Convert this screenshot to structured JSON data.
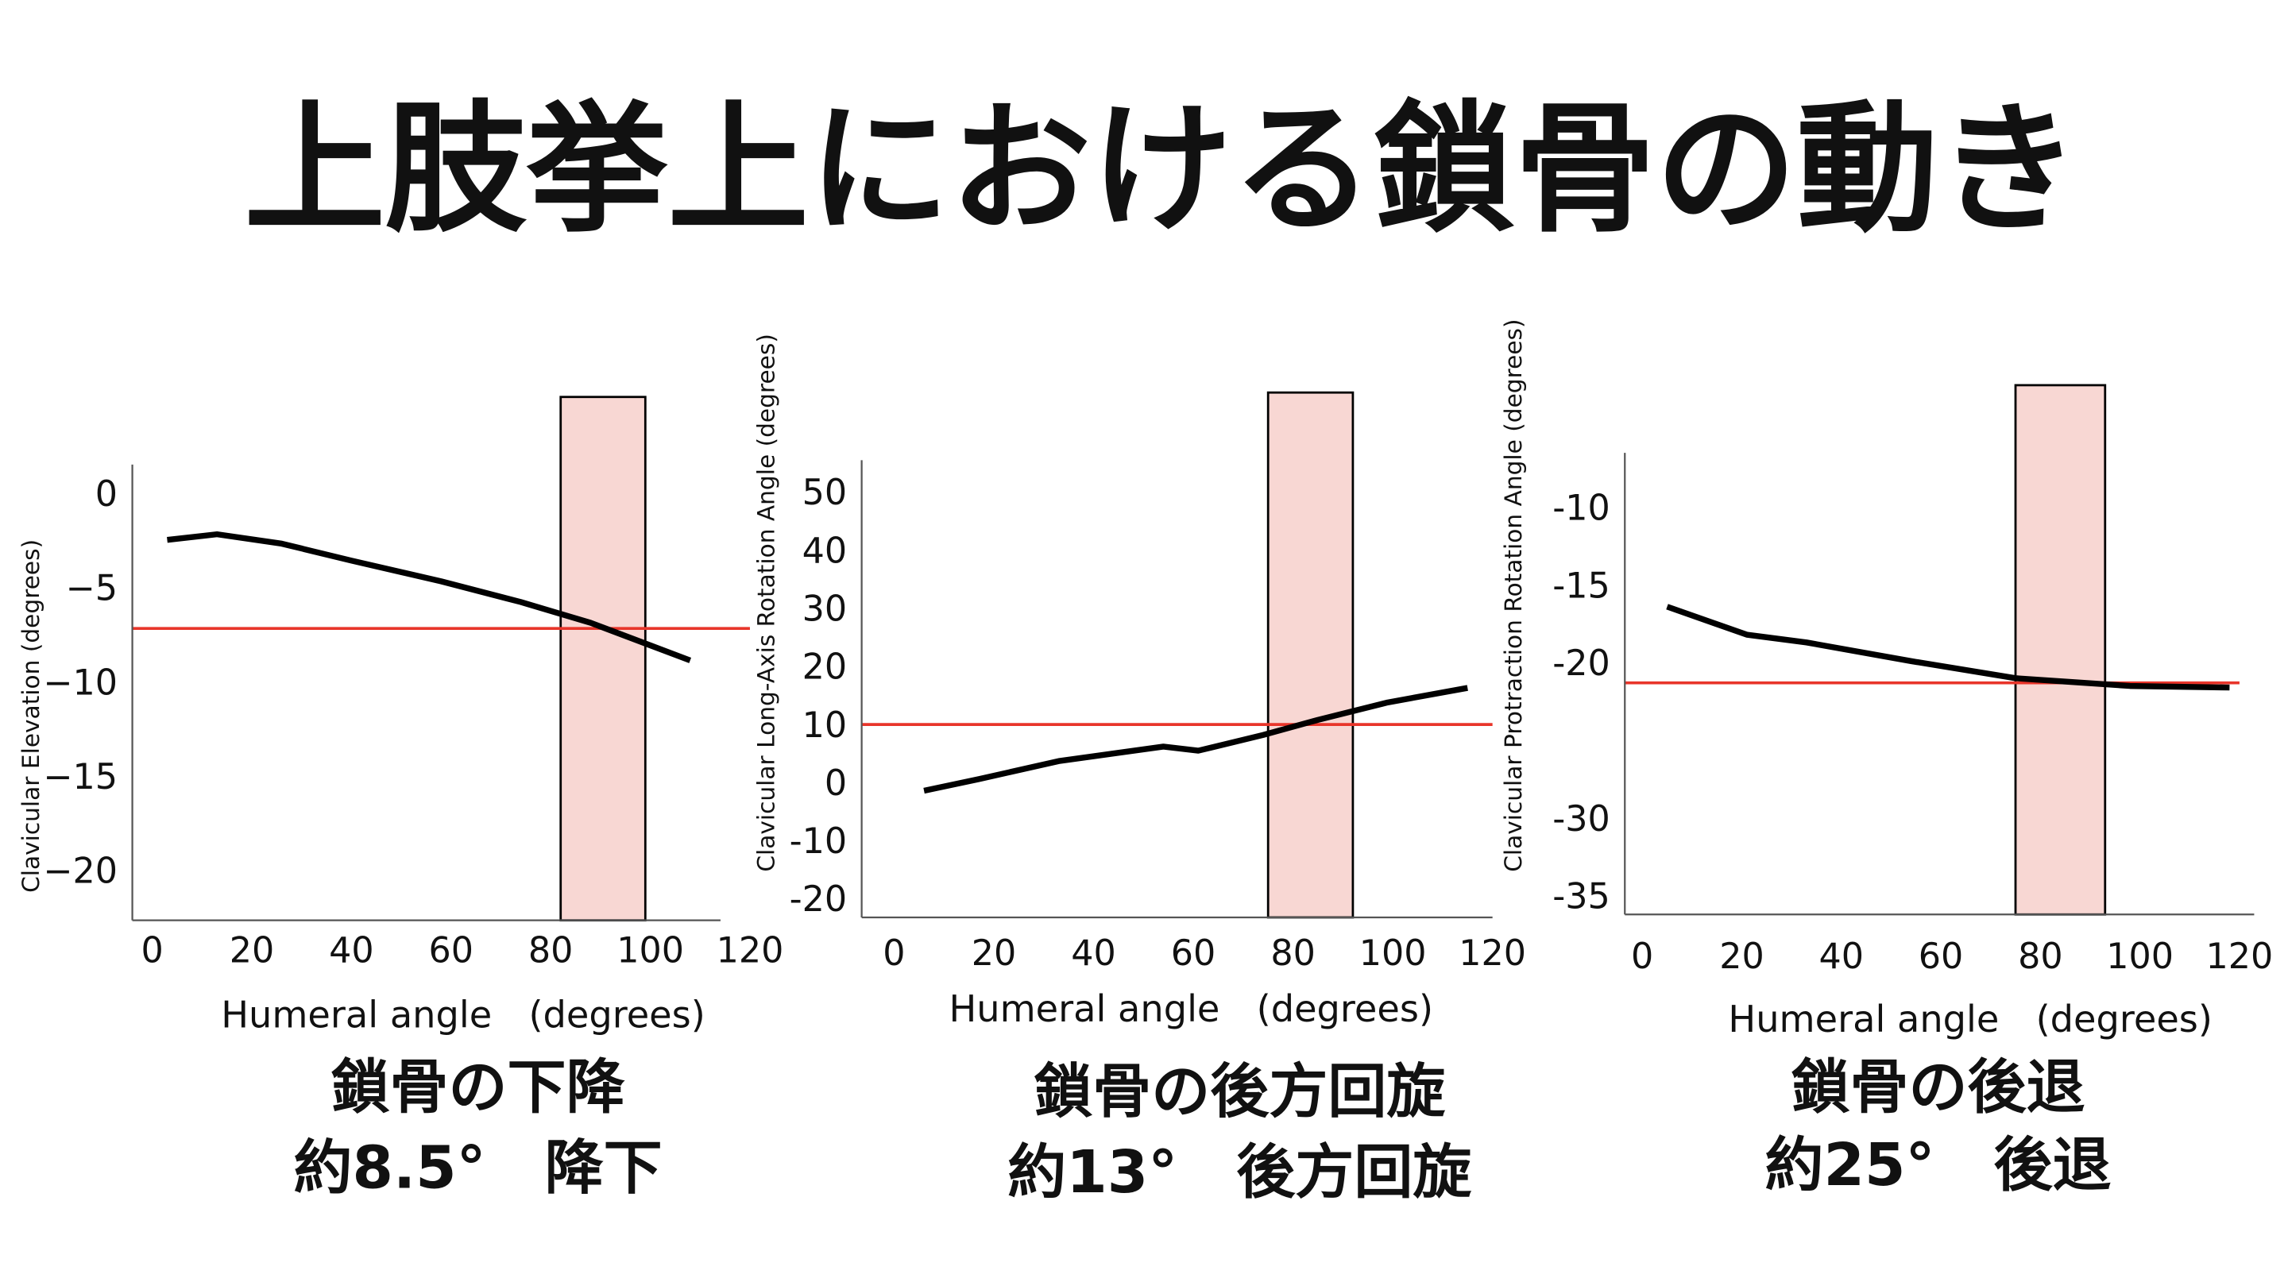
{
  "title": "上肢挙上における鎖骨の動き",
  "chart_data": [
    {
      "type": "line",
      "y_label": "Clavicular Elevation (degrees)",
      "x_label": "Humeral angle　(degrees)",
      "x": [
        3,
        13,
        26,
        40,
        58,
        74,
        88,
        99,
        108
      ],
      "values": [
        -2.3,
        -2.0,
        -2.5,
        -3.4,
        -4.5,
        -5.6,
        -6.7,
        -7.8,
        -8.7
      ],
      "color": "#000000",
      "reference_line": -7.0,
      "reference_color": "#e8352a",
      "highlight_x": [
        82,
        99
      ],
      "highlight_color": "#f8d7d3",
      "xlim": [
        -4,
        120
      ],
      "ylim": [
        -22.5,
        1.7
      ],
      "xticks": [
        0,
        20,
        40,
        60,
        80,
        100,
        120
      ],
      "yticks": [
        0,
        {
          "value": -5,
          "label": "−5"
        },
        {
          "value": -10,
          "label": "−10"
        },
        {
          "value": -15,
          "label": "−15"
        },
        {
          "value": -20,
          "label": "−20"
        }
      ],
      "grid": false,
      "caption": [
        "鎖骨の下降",
        "約8.5°　降下"
      ]
    },
    {
      "type": "line",
      "y_label": "Clavicular Long-Axis Rotation Angle (degrees)",
      "x_label": "Humeral angle　(degrees)",
      "x": [
        6,
        17,
        33,
        54,
        61,
        74,
        85,
        99,
        115
      ],
      "values": [
        -0.9,
        1.1,
        4.2,
        6.7,
        6.0,
        8.7,
        11.3,
        14.3,
        16.8
      ],
      "color": "#000000",
      "reference_line": 10.5,
      "reference_color": "#e8352a",
      "highlight_x": [
        75,
        92
      ],
      "highlight_color": "#f8d7d3",
      "xlim": [
        -6.5,
        120
      ],
      "ylim": [
        -22.7,
        56
      ],
      "xticks": [
        0,
        20,
        40,
        60,
        80,
        100,
        120
      ],
      "yticks": [
        50,
        40,
        30,
        20,
        10,
        0,
        -10,
        -20
      ],
      "grid": false,
      "caption": [
        "鎖骨の後方回旋",
        "約13°　後方回旋"
      ]
    },
    {
      "type": "line",
      "y_label": "Clavicular Protraction  Rotation Angle (degrees)",
      "x_label": "Humeral angle　(degrees)",
      "x": [
        5,
        21,
        33,
        54,
        75,
        98,
        118
      ],
      "values": [
        -16.2,
        -18.0,
        -18.5,
        -19.7,
        -20.8,
        -21.3,
        -21.4
      ],
      "color": "#000000",
      "reference_line": -21.1,
      "reference_color": "#e8352a",
      "highlight_x": [
        75,
        93
      ],
      "highlight_color": "#f8d7d3",
      "xlim": [
        -3.5,
        120
      ],
      "ylim": [
        -36,
        -6.3
      ],
      "xticks": [
        0,
        20,
        40,
        60,
        80,
        100,
        120
      ],
      "yticks": [
        -10,
        -15,
        -20,
        -30,
        -35
      ],
      "grid": false,
      "caption": [
        "鎖骨の後退",
        "約25°　後退"
      ]
    }
  ]
}
